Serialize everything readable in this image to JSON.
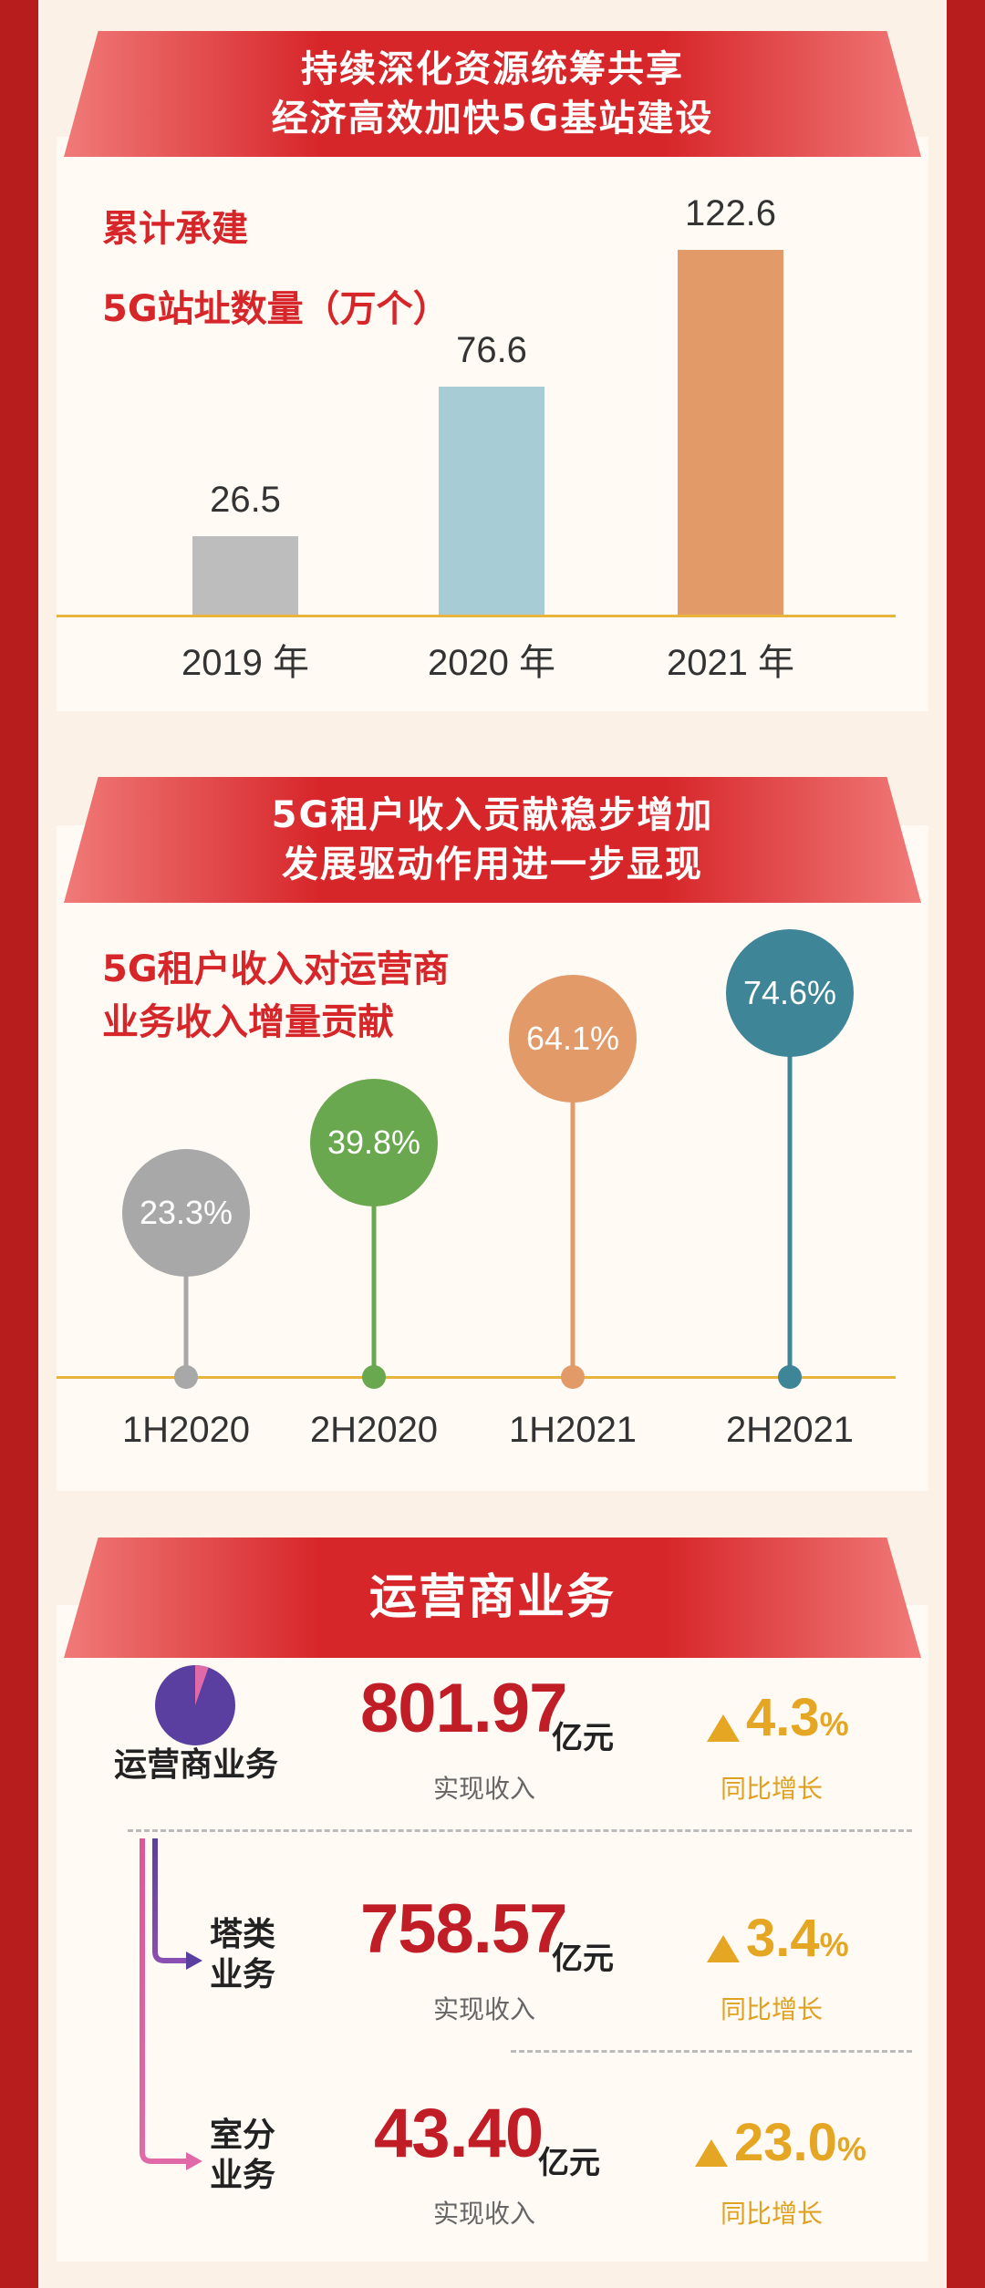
{
  "section1": {
    "banner_line1": "持续深化资源统筹共享",
    "banner_line2": "经济高效加快5G基站建设",
    "title_line1": "累计承建",
    "title_line2": "5G站址数量（万个）"
  },
  "section2": {
    "banner_line1": "5G租户收入贡献稳步增加",
    "banner_line2": "发展驱动作用进一步显现",
    "title_line1": "5G租户收入对运营商",
    "title_line2": "业务收入增量贡献"
  },
  "section3": {
    "banner": "运营商业务",
    "rows": [
      {
        "name": "运营商业务",
        "value": "801.97",
        "unit": "亿元",
        "caption": "实现收入",
        "growth": "4.3",
        "growth_unit": "%",
        "growth_caption": "同比增长"
      },
      {
        "name_line1": "塔类",
        "name_line2": "业务",
        "value": "758.57",
        "unit": "亿元",
        "caption": "实现收入",
        "growth": "3.4",
        "growth_unit": "%",
        "growth_caption": "同比增长"
      },
      {
        "name_line1": "室分",
        "name_line2": "业务",
        "value": "43.40",
        "unit": "亿元",
        "caption": "实现收入",
        "growth": "23.0",
        "growth_unit": "%",
        "growth_caption": "同比增长"
      }
    ],
    "pie_fraction": 0.946
  },
  "chart_data": [
    {
      "type": "bar",
      "title": "累计承建 5G站址数量（万个）",
      "categories": [
        "2019 年",
        "2020 年",
        "2021 年"
      ],
      "values": [
        26.5,
        76.6,
        122.6
      ],
      "value_labels": [
        "26.5",
        "76.6",
        "122.6"
      ],
      "colors": [
        "#bdbdbd",
        "#a8ccd6",
        "#e29a68"
      ],
      "ylim": [
        0,
        122.6
      ]
    },
    {
      "type": "scatter",
      "title": "5G租户收入对运营商 业务收入增量贡献",
      "categories": [
        "1H2020",
        "2H2020",
        "1H2021",
        "2H2021"
      ],
      "values": [
        23.3,
        39.8,
        64.1,
        74.6
      ],
      "value_labels": [
        "23.3%",
        "39.8%",
        "64.1%",
        "74.6%"
      ],
      "colors": [
        "#a8a8a8",
        "#6aa84f",
        "#e29a68",
        "#3d8597"
      ],
      "ylim": [
        0,
        100
      ]
    }
  ]
}
